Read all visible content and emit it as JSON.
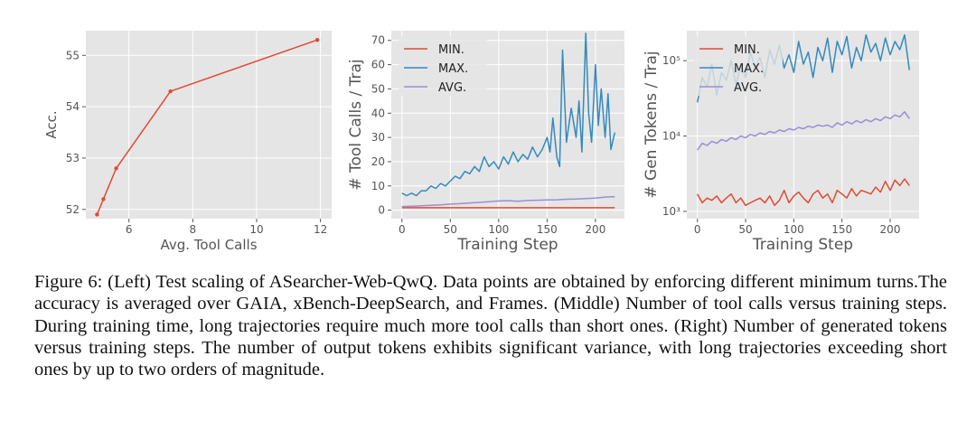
{
  "chart_data": [
    {
      "type": "line",
      "id": "left",
      "title": "",
      "xlabel": "Avg. Tool Calls",
      "ylabel": "Acc.",
      "xlim": [
        4.65,
        12.35
      ],
      "ylim": [
        51.82,
        55.48
      ],
      "xticks": [
        6,
        8,
        10,
        12
      ],
      "yticks": [
        52,
        53,
        54,
        55
      ],
      "grid": true,
      "series": [
        {
          "name": "ASearcher-Web-QwQ",
          "color": "#e24a33",
          "x": [
            5.0,
            5.2,
            5.6,
            7.3,
            11.9
          ],
          "y": [
            51.9,
            52.2,
            52.8,
            54.3,
            55.3
          ]
        }
      ]
    },
    {
      "type": "line",
      "id": "middle",
      "xlabel": "Training Step",
      "ylabel": "# Tool Calls / Traj",
      "xlim": [
        -11,
        230
      ],
      "ylim": [
        -3.5,
        74
      ],
      "xticks": [
        0,
        50,
        100,
        150,
        200
      ],
      "yticks": [
        0,
        10,
        20,
        30,
        40,
        50,
        60,
        70
      ],
      "grid": true,
      "legend": "top-left",
      "series": [
        {
          "name": "MIN.",
          "color": "#e24a33",
          "x": [
            0,
            10,
            20,
            30,
            40,
            50,
            60,
            70,
            80,
            90,
            100,
            110,
            120,
            130,
            140,
            150,
            160,
            170,
            180,
            190,
            200,
            210,
            220
          ],
          "y": [
            1,
            1,
            1,
            1,
            1,
            1,
            1,
            1,
            1,
            1,
            1,
            1,
            1,
            1,
            1,
            1,
            1,
            1,
            1,
            1,
            1,
            1,
            1
          ]
        },
        {
          "name": "MAX.",
          "color": "#348abd",
          "x": [
            0,
            5,
            10,
            15,
            20,
            25,
            30,
            35,
            40,
            45,
            50,
            55,
            60,
            65,
            70,
            75,
            80,
            85,
            90,
            95,
            100,
            105,
            110,
            115,
            120,
            125,
            130,
            135,
            140,
            145,
            150,
            153,
            156,
            160,
            163,
            166,
            170,
            175,
            180,
            183,
            186,
            190,
            193,
            196,
            200,
            203,
            206,
            210,
            213,
            216,
            220
          ],
          "y": [
            7,
            6,
            7,
            6,
            8,
            8,
            10,
            9,
            11,
            10,
            12,
            14,
            13,
            16,
            15,
            18,
            16,
            22,
            18,
            20,
            17,
            22,
            19,
            24,
            20,
            23,
            21,
            26,
            22,
            25,
            30,
            24,
            38,
            22,
            18,
            66,
            28,
            42,
            30,
            45,
            24,
            73,
            40,
            28,
            60,
            35,
            50,
            30,
            48,
            25,
            32
          ]
        },
        {
          "name": "AVG.",
          "color": "#988ed5",
          "x": [
            0,
            10,
            20,
            30,
            40,
            50,
            60,
            70,
            80,
            90,
            100,
            110,
            120,
            130,
            140,
            150,
            160,
            170,
            180,
            190,
            200,
            210,
            220
          ],
          "y": [
            1.5,
            1.6,
            1.8,
            2.0,
            2.2,
            2.5,
            2.7,
            3.0,
            3.2,
            3.5,
            3.8,
            3.9,
            3.7,
            4.0,
            4.1,
            4.2,
            4.3,
            4.5,
            4.6,
            4.8,
            5.0,
            5.4,
            5.6
          ]
        }
      ]
    },
    {
      "type": "line",
      "id": "right",
      "xlabel": "Training Step",
      "ylabel": "# Gen Tokens / Traj",
      "yscale": "log",
      "xlim": [
        -11,
        230
      ],
      "ylim": [
        800,
        250000
      ],
      "xticks": [
        0,
        50,
        100,
        150,
        200
      ],
      "yticks": [
        1000,
        10000,
        100000
      ],
      "ytick_labels": [
        "10³",
        "10⁴",
        "10⁵"
      ],
      "grid": true,
      "legend": "top-left",
      "series": [
        {
          "name": "MIN.",
          "color": "#e24a33",
          "x": [
            0,
            5,
            10,
            15,
            20,
            25,
            30,
            35,
            40,
            45,
            50,
            55,
            60,
            65,
            70,
            75,
            80,
            85,
            90,
            95,
            100,
            105,
            110,
            115,
            120,
            125,
            130,
            135,
            140,
            145,
            150,
            155,
            160,
            165,
            170,
            175,
            180,
            185,
            190,
            195,
            200,
            205,
            210,
            215,
            220
          ],
          "y": [
            1700,
            1300,
            1500,
            1400,
            1600,
            1300,
            1500,
            1700,
            1300,
            1500,
            1200,
            1300,
            1400,
            1500,
            1300,
            1600,
            1200,
            1400,
            1900,
            1300,
            1600,
            1800,
            1500,
            1300,
            1700,
            1900,
            1500,
            1700,
            1300,
            1900,
            1700,
            1500,
            2000,
            1600,
            1900,
            1800,
            1700,
            2100,
            1800,
            2500,
            1900,
            2600,
            2200,
            2700,
            2200
          ]
        },
        {
          "name": "MAX.",
          "color": "#348abd",
          "x": [
            0,
            5,
            10,
            15,
            20,
            25,
            30,
            35,
            40,
            45,
            50,
            55,
            60,
            65,
            70,
            75,
            80,
            85,
            90,
            95,
            100,
            105,
            110,
            115,
            120,
            125,
            130,
            135,
            140,
            145,
            150,
            155,
            160,
            165,
            170,
            175,
            180,
            185,
            190,
            195,
            200,
            205,
            210,
            215,
            220
          ],
          "y": [
            28000,
            60000,
            45000,
            90000,
            35000,
            70000,
            55000,
            100000,
            48000,
            90000,
            60000,
            130000,
            80000,
            110000,
            60000,
            140000,
            90000,
            160000,
            80000,
            120000,
            70000,
            180000,
            90000,
            130000,
            60000,
            150000,
            100000,
            200000,
            70000,
            180000,
            120000,
            210000,
            80000,
            150000,
            100000,
            220000,
            130000,
            170000,
            100000,
            200000,
            120000,
            180000,
            140000,
            220000,
            75000
          ]
        },
        {
          "name": "AVG.",
          "color": "#988ed5",
          "x": [
            0,
            5,
            10,
            15,
            20,
            25,
            30,
            35,
            40,
            45,
            50,
            55,
            60,
            65,
            70,
            75,
            80,
            85,
            90,
            95,
            100,
            105,
            110,
            115,
            120,
            125,
            130,
            135,
            140,
            145,
            150,
            155,
            160,
            165,
            170,
            175,
            180,
            185,
            190,
            195,
            200,
            205,
            210,
            215,
            220
          ],
          "y": [
            6500,
            8000,
            7500,
            8500,
            8000,
            9000,
            8500,
            9500,
            9000,
            10000,
            9500,
            10500,
            10000,
            11000,
            10500,
            11500,
            11000,
            12000,
            11500,
            12500,
            12000,
            13000,
            12500,
            13500,
            13000,
            14000,
            13500,
            14000,
            13000,
            15000,
            14000,
            15500,
            14500,
            16000,
            15000,
            16500,
            15500,
            17000,
            16000,
            18000,
            17000,
            19000,
            18000,
            21000,
            17000
          ]
        }
      ]
    }
  ],
  "caption": "Figure 6: (Left) Test scaling of ASearcher-Web-QwQ. Data points are obtained by enforcing different minimum turns.The accuracy is averaged over GAIA, xBench-DeepSearch, and Frames. (Middle) Number of tool calls versus training steps. During training time, long trajectories require much more tool calls than short ones. (Right) Number of generated tokens versus training steps. The number of output tokens exhibits significant variance, with long trajectories exceeding short ones by up to two orders of magnitude."
}
